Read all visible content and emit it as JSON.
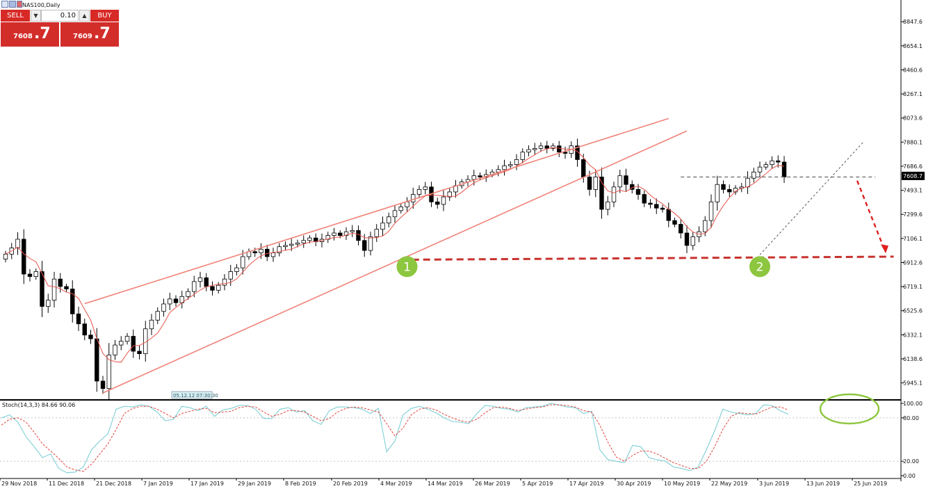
{
  "chart_title": "NAS100,Daily",
  "current_price_label": "7608.7",
  "trade_panel": {
    "sell_label": "SELL",
    "buy_label": "BUY",
    "lot_value": "0.10",
    "sell_small": "7608",
    "sell_big": ".7",
    "buy_small": "7609",
    "buy_big": ".7"
  },
  "time_tag": "05.12.12 07:30:30",
  "stoch_label": "Stoch(14,3,3) 84.66 90.06",
  "annotations": {
    "marker1": "1",
    "marker2": "2"
  },
  "colors": {
    "bull": "#ffffff",
    "bear": "#000000",
    "ma": "#e8534a",
    "channel": "#f08378",
    "support": "#c8322d",
    "marker": "#8dc63f",
    "stoch_k": "#7ecfd6",
    "stoch_d": "#e0433b",
    "trade_red": "#d72a26"
  },
  "chart_data": [
    {
      "type": "candlestick",
      "title": "NAS100,Daily",
      "ylim": [
        5848,
        8944
      ],
      "y_ticks": [
        "8847.6",
        "8654.1",
        "8460.6",
        "8267.1",
        "8073.6",
        "7880.1",
        "7686.6",
        "7493.1",
        "7299.6",
        "7106.1",
        "6912.6",
        "6719.1",
        "6525.6",
        "6332.1",
        "6138.6",
        "5945.1"
      ],
      "x_ticks": [
        "29 Nov 2018",
        "11 Dec 2018",
        "21 Dec 2018",
        "7 Jan 2019",
        "17 Jan 2019",
        "29 Jan 2019",
        "8 Feb 2019",
        "20 Feb 2019",
        "4 Mar 2019",
        "14 Mar 2019",
        "26 Mar 2019",
        "5 Apr 2019",
        "17 Apr 2019",
        "30 Apr 2019",
        "10 May 2019",
        "22 May 2019",
        "3 Jun 2019",
        "13 Jun 2019",
        "25 Jun 2019"
      ],
      "close": [
        6980,
        7030,
        7100,
        6820,
        6800,
        6840,
        6560,
        6610,
        6780,
        6720,
        6700,
        6500,
        6420,
        6330,
        6300,
        5960,
        5900,
        6170,
        6250,
        6280,
        6320,
        6200,
        6180,
        6380,
        6450,
        6520,
        6580,
        6620,
        6590,
        6640,
        6680,
        6760,
        6790,
        6720,
        6690,
        6730,
        6780,
        6840,
        6870,
        6960,
        7000,
        6990,
        7020,
        6960,
        6990,
        7040,
        7050,
        7060,
        7070,
        7090,
        7110,
        7080,
        7100,
        7130,
        7150,
        7130,
        7160,
        7170,
        7090,
        7010,
        7120,
        7180,
        7230,
        7280,
        7330,
        7360,
        7400,
        7460,
        7500,
        7520,
        7400,
        7380,
        7440,
        7480,
        7530,
        7560,
        7580,
        7610,
        7600,
        7620,
        7640,
        7660,
        7690,
        7700,
        7740,
        7800,
        7820,
        7830,
        7850,
        7830,
        7850,
        7800,
        7790,
        7850,
        7740,
        7600,
        7500,
        7600,
        7340,
        7400,
        7520,
        7610,
        7540,
        7500,
        7460,
        7390,
        7380,
        7350,
        7340,
        7250,
        7220,
        7150,
        7050,
        7120,
        7160,
        7250,
        7400,
        7540,
        7500,
        7480,
        7510,
        7520,
        7590,
        7640,
        7680,
        7700,
        7730,
        7720,
        7600
      ],
      "series": [
        {
          "name": "MA",
          "note": "close moving average"
        }
      ]
    },
    {
      "type": "line",
      "title": "Stoch(14,3,3) 84.66 90.06",
      "ylim": [
        0,
        100
      ],
      "y_ticks": [
        "100.00",
        "80.00",
        "20.00",
        "0.00"
      ],
      "levels": [
        80,
        20
      ],
      "series": [
        {
          "name": "%K",
          "values": [
            80,
            84,
            74,
            54,
            40,
            25,
            30,
            10,
            4,
            5,
            12,
            36,
            48,
            58,
            92,
            96,
            95,
            98,
            96,
            88,
            76,
            78,
            96,
            94,
            90,
            96,
            82,
            91,
            93,
            97,
            97,
            92,
            79,
            79,
            92,
            94,
            88,
            90,
            76,
            71,
            90,
            95,
            95,
            94,
            92,
            86,
            93,
            33,
            48,
            84,
            93,
            96,
            92,
            87,
            80,
            75,
            74,
            72,
            86,
            97,
            96,
            93,
            92,
            88,
            94,
            95,
            96,
            100,
            98,
            95,
            94,
            86,
            89,
            36,
            22,
            20,
            18,
            42,
            40,
            25,
            22,
            20,
            12,
            10,
            7,
            12,
            36,
            62,
            92,
            88,
            86,
            84,
            86,
            98,
            97,
            90,
            85
          ]
        },
        {
          "name": "%D",
          "values": [
            70,
            78,
            80,
            74,
            60,
            44,
            34,
            24,
            12,
            8,
            6,
            16,
            30,
            44,
            64,
            86,
            93,
            96,
            96,
            92,
            86,
            80,
            86,
            89,
            92,
            93,
            87,
            88,
            89,
            94,
            96,
            95,
            88,
            82,
            85,
            90,
            90,
            88,
            82,
            76,
            79,
            88,
            93,
            95,
            94,
            91,
            88,
            72,
            55,
            66,
            84,
            92,
            94,
            91,
            85,
            80,
            76,
            74,
            78,
            87,
            94,
            95,
            93,
            90,
            92,
            94,
            95,
            98,
            98,
            97,
            95,
            90,
            88,
            70,
            46,
            26,
            20,
            28,
            34,
            34,
            30,
            24,
            18,
            14,
            10,
            10,
            20,
            40,
            64,
            82,
            87,
            86,
            85,
            90,
            95,
            95,
            91
          ]
        }
      ]
    }
  ]
}
